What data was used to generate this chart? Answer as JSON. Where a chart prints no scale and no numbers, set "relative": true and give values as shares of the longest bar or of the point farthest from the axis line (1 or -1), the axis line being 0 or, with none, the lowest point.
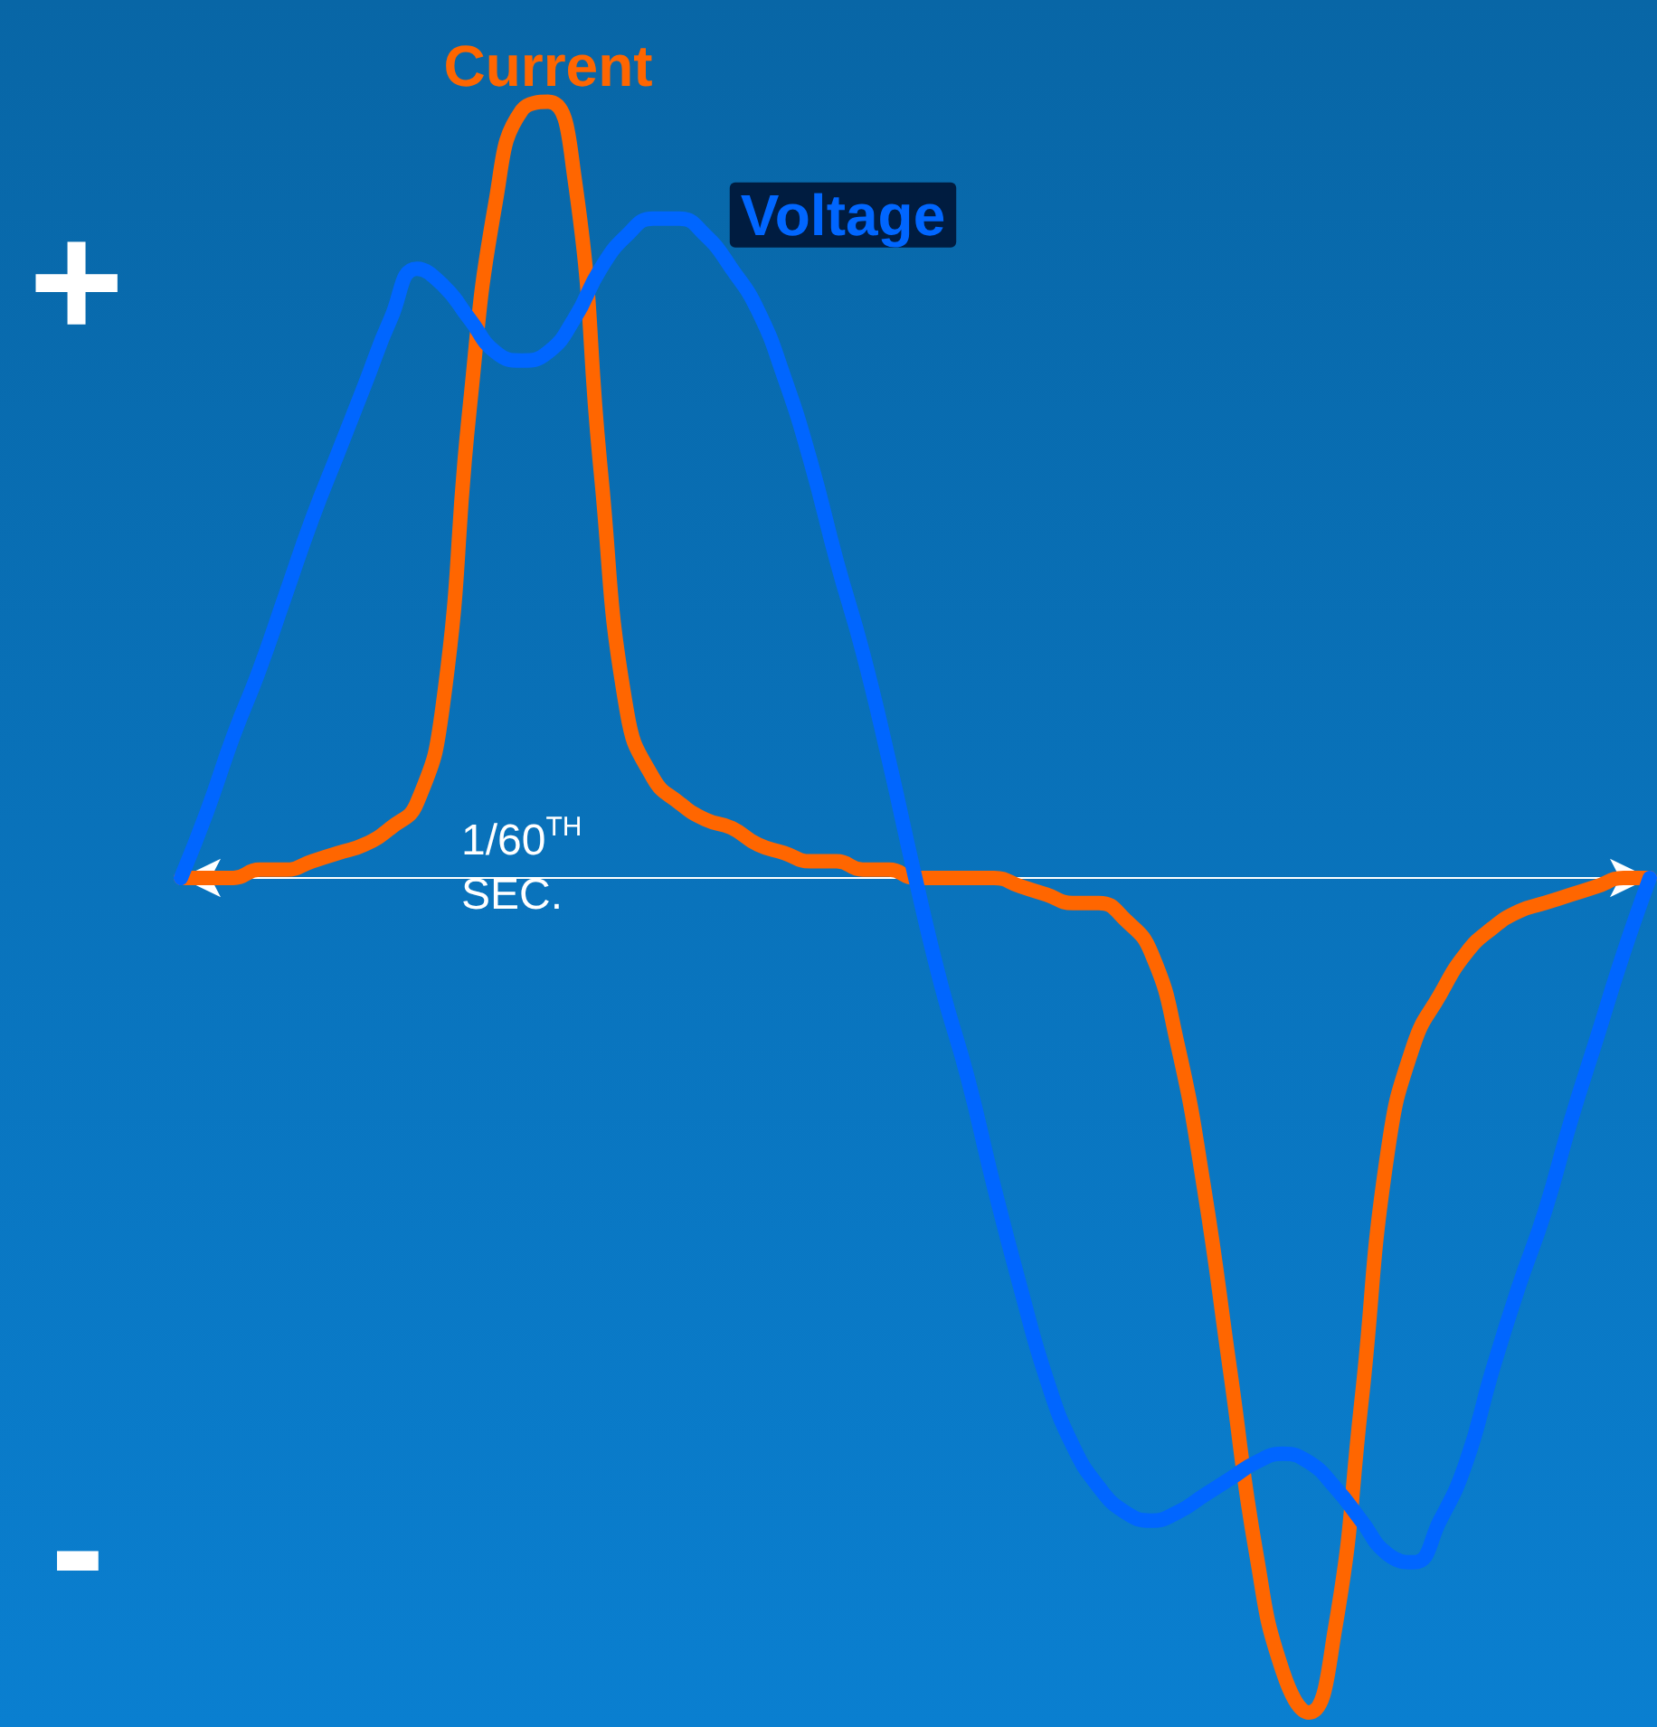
{
  "chart_data": {
    "type": "line",
    "relative": true,
    "categories": [
      null,
      null,
      null,
      null,
      null,
      null,
      null,
      null,
      null,
      null,
      null,
      null,
      null,
      null,
      null,
      null,
      null,
      null,
      null,
      null,
      null,
      null,
      null,
      null,
      null,
      null,
      null,
      null,
      null,
      null,
      null,
      null,
      null,
      null,
      null,
      null,
      null,
      null,
      null,
      null,
      null,
      null,
      null,
      null,
      null,
      null,
      null,
      null,
      null,
      null,
      null,
      null,
      null,
      null,
      null,
      null,
      null
    ],
    "series": [
      {
        "name": "Current",
        "color": "#ff6600",
        "values": [
          0,
          0,
          0,
          0.01,
          0.01,
          0.02,
          0.03,
          0.04,
          0.06,
          0.09,
          0.21,
          0.56,
          0.81,
          0.92,
          0.93,
          0.84,
          0.49,
          0.2,
          0.12,
          0.09,
          0.07,
          0.06,
          0.04,
          0.03,
          0.02,
          0.02,
          0.01,
          0.01,
          0,
          0,
          0,
          0,
          -0.01,
          -0.02,
          -0.03,
          -0.03,
          -0.05,
          -0.09,
          -0.2,
          -0.37,
          -0.59,
          -0.81,
          -0.95,
          -1,
          -0.9,
          -0.63,
          -0.33,
          -0.2,
          -0.14,
          -0.09,
          -0.06,
          -0.04,
          -0.03,
          -0.02,
          -0.01,
          0,
          0
        ]
      },
      {
        "name": "Voltage",
        "color": "#0066ff",
        "values": [
          0,
          0.08,
          0.17,
          0.25,
          0.34,
          0.43,
          0.51,
          0.59,
          0.67,
          0.73,
          0.71,
          0.67,
          0.63,
          0.62,
          0.63,
          0.67,
          0.73,
          0.77,
          0.79,
          0.79,
          0.77,
          0.73,
          0.68,
          0.6,
          0.5,
          0.38,
          0.27,
          0.14,
          0,
          -0.13,
          -0.24,
          -0.37,
          -0.49,
          -0.6,
          -0.68,
          -0.73,
          -0.76,
          -0.77,
          -0.76,
          -0.74,
          -0.72,
          -0.7,
          -0.69,
          -0.7,
          -0.73,
          -0.77,
          -0.81,
          -0.82,
          -0.77,
          -0.7,
          -0.59,
          -0.49,
          -0.4,
          -0.29,
          -0.19,
          -0.09,
          0
        ]
      }
    ],
    "annotations": [
      "+",
      "-",
      "1/60$^{TH}$\nSEC."
    ],
    "legend": false,
    "grid": false,
    "marker": "none",
    "line_style": "solid"
  }
}
